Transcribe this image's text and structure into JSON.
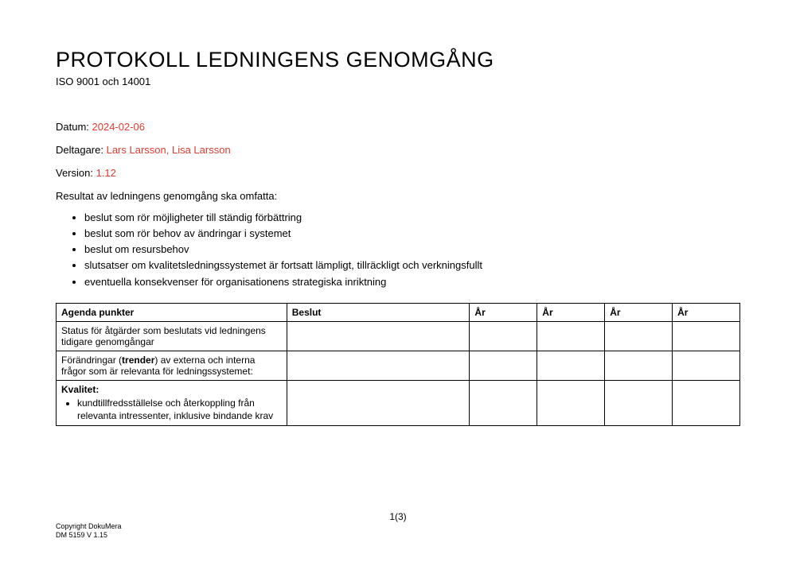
{
  "header": {
    "title": "PROTOKOLL LEDNINGENS GENOMGÅNG",
    "subtitle": "ISO 9001 och 14001"
  },
  "meta": {
    "date_label": "Datum: ",
    "date_value": "2024-02-06",
    "participants_label": "Deltagare: ",
    "participants_value": "Lars Larsson, Lisa Larsson",
    "version_label": "Version: ",
    "version_value": "1.12"
  },
  "intro": "Resultat av ledningens genomgång ska omfatta:",
  "bullets": {
    "b1": "beslut som rör möjligheter till ständig förbättring",
    "b2": "beslut som rör behov av ändringar i systemet",
    "b3": "beslut om resursbehov",
    "b4": "slutsatser om kvalitetsledningssystemet är fortsatt lämpligt, tillräckligt och verkningsfullt",
    "b5": "eventuella konsekvenser för organisationens strategiska inriktning"
  },
  "table": {
    "headers": {
      "agenda": "Agenda punkter",
      "beslut": "Beslut",
      "ar": "År"
    },
    "row1": {
      "agenda": "Status för åtgärder som beslutats vid ledningens tidigare genomgångar"
    },
    "row2": {
      "agenda_pre": "Förändringar (",
      "agenda_bold": "trender",
      "agenda_post": ") av externa och interna frågor som är relevanta för ledningssystemet:"
    },
    "row3": {
      "header": "Kvalitet:",
      "item1": "kundtillfredsställelse och återkoppling från relevanta intressenter, inklusive bindande krav"
    }
  },
  "page_number": "1(3)",
  "footer": {
    "line1": "Copyright DokuMera",
    "line2": "DM 5159 V 1.15"
  }
}
